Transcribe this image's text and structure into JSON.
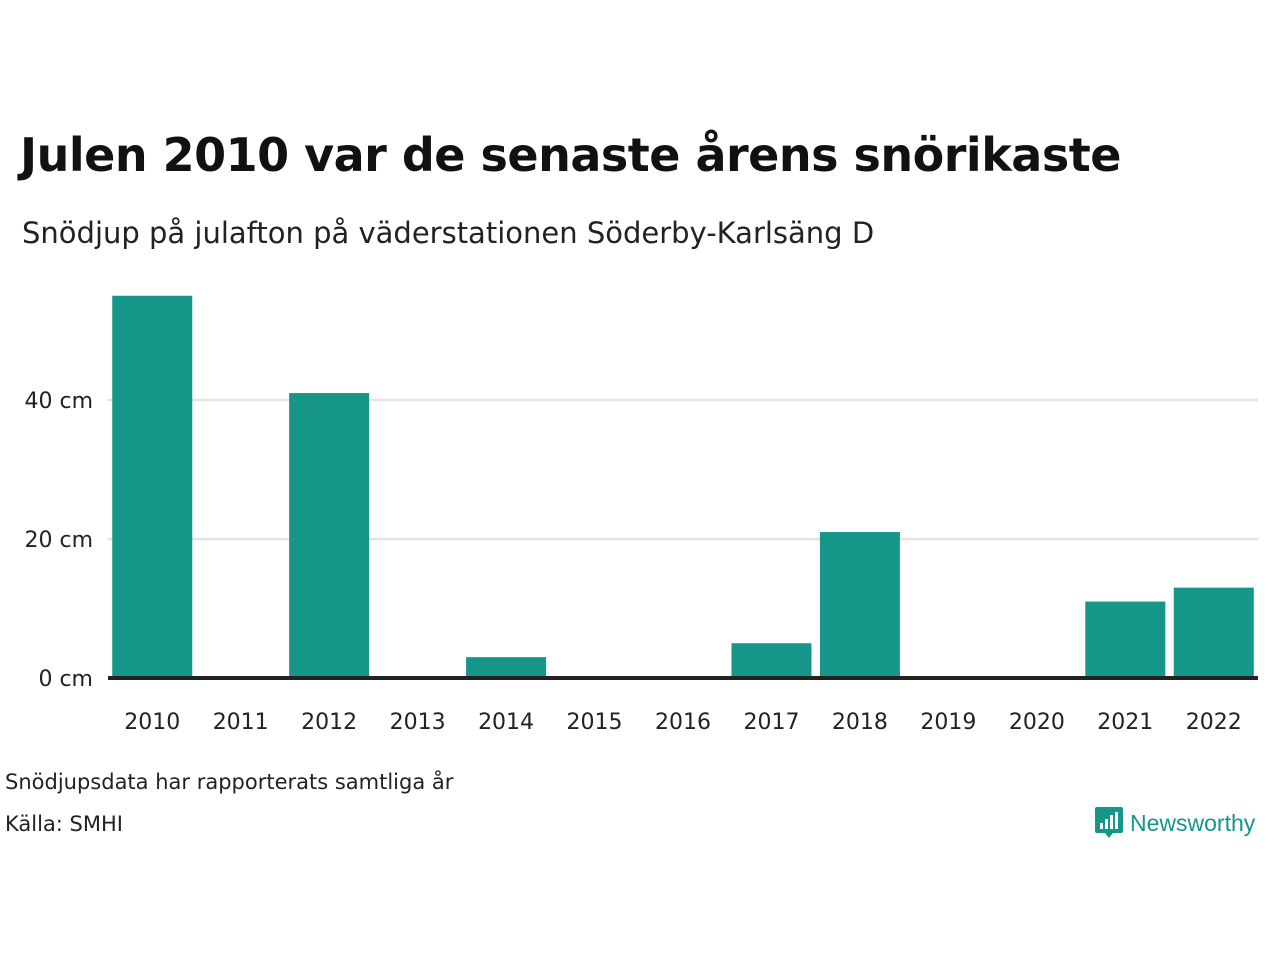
{
  "title": "Julen 2010 var de senaste årens snörikaste",
  "subtitle": "Snödjup på julafton på väderstationen Söderby-Karlsäng D",
  "footnote": "Snödjupsdata har rapporterats samtliga år",
  "source": "Källa: SMHI",
  "brand": {
    "name": "Newsworthy",
    "icon": "newsworthy-logo-icon"
  },
  "colors": {
    "bar": "#159688",
    "grid": "#e3e3e3",
    "baseline": "#222222",
    "brand": "#15968a"
  },
  "chart_data": {
    "type": "bar",
    "categories": [
      "2010",
      "2011",
      "2012",
      "2013",
      "2014",
      "2015",
      "2016",
      "2017",
      "2018",
      "2019",
      "2020",
      "2021",
      "2022"
    ],
    "values": [
      55,
      0,
      41,
      0,
      3,
      0,
      0,
      5,
      21,
      0,
      0,
      11,
      13
    ],
    "unit": "cm",
    "ylim": [
      0,
      60
    ],
    "yticks": [
      0,
      20,
      40
    ],
    "ytick_labels": [
      "0 cm",
      "20 cm",
      "40 cm"
    ],
    "grid": true,
    "xlabel": "",
    "ylabel": ""
  }
}
